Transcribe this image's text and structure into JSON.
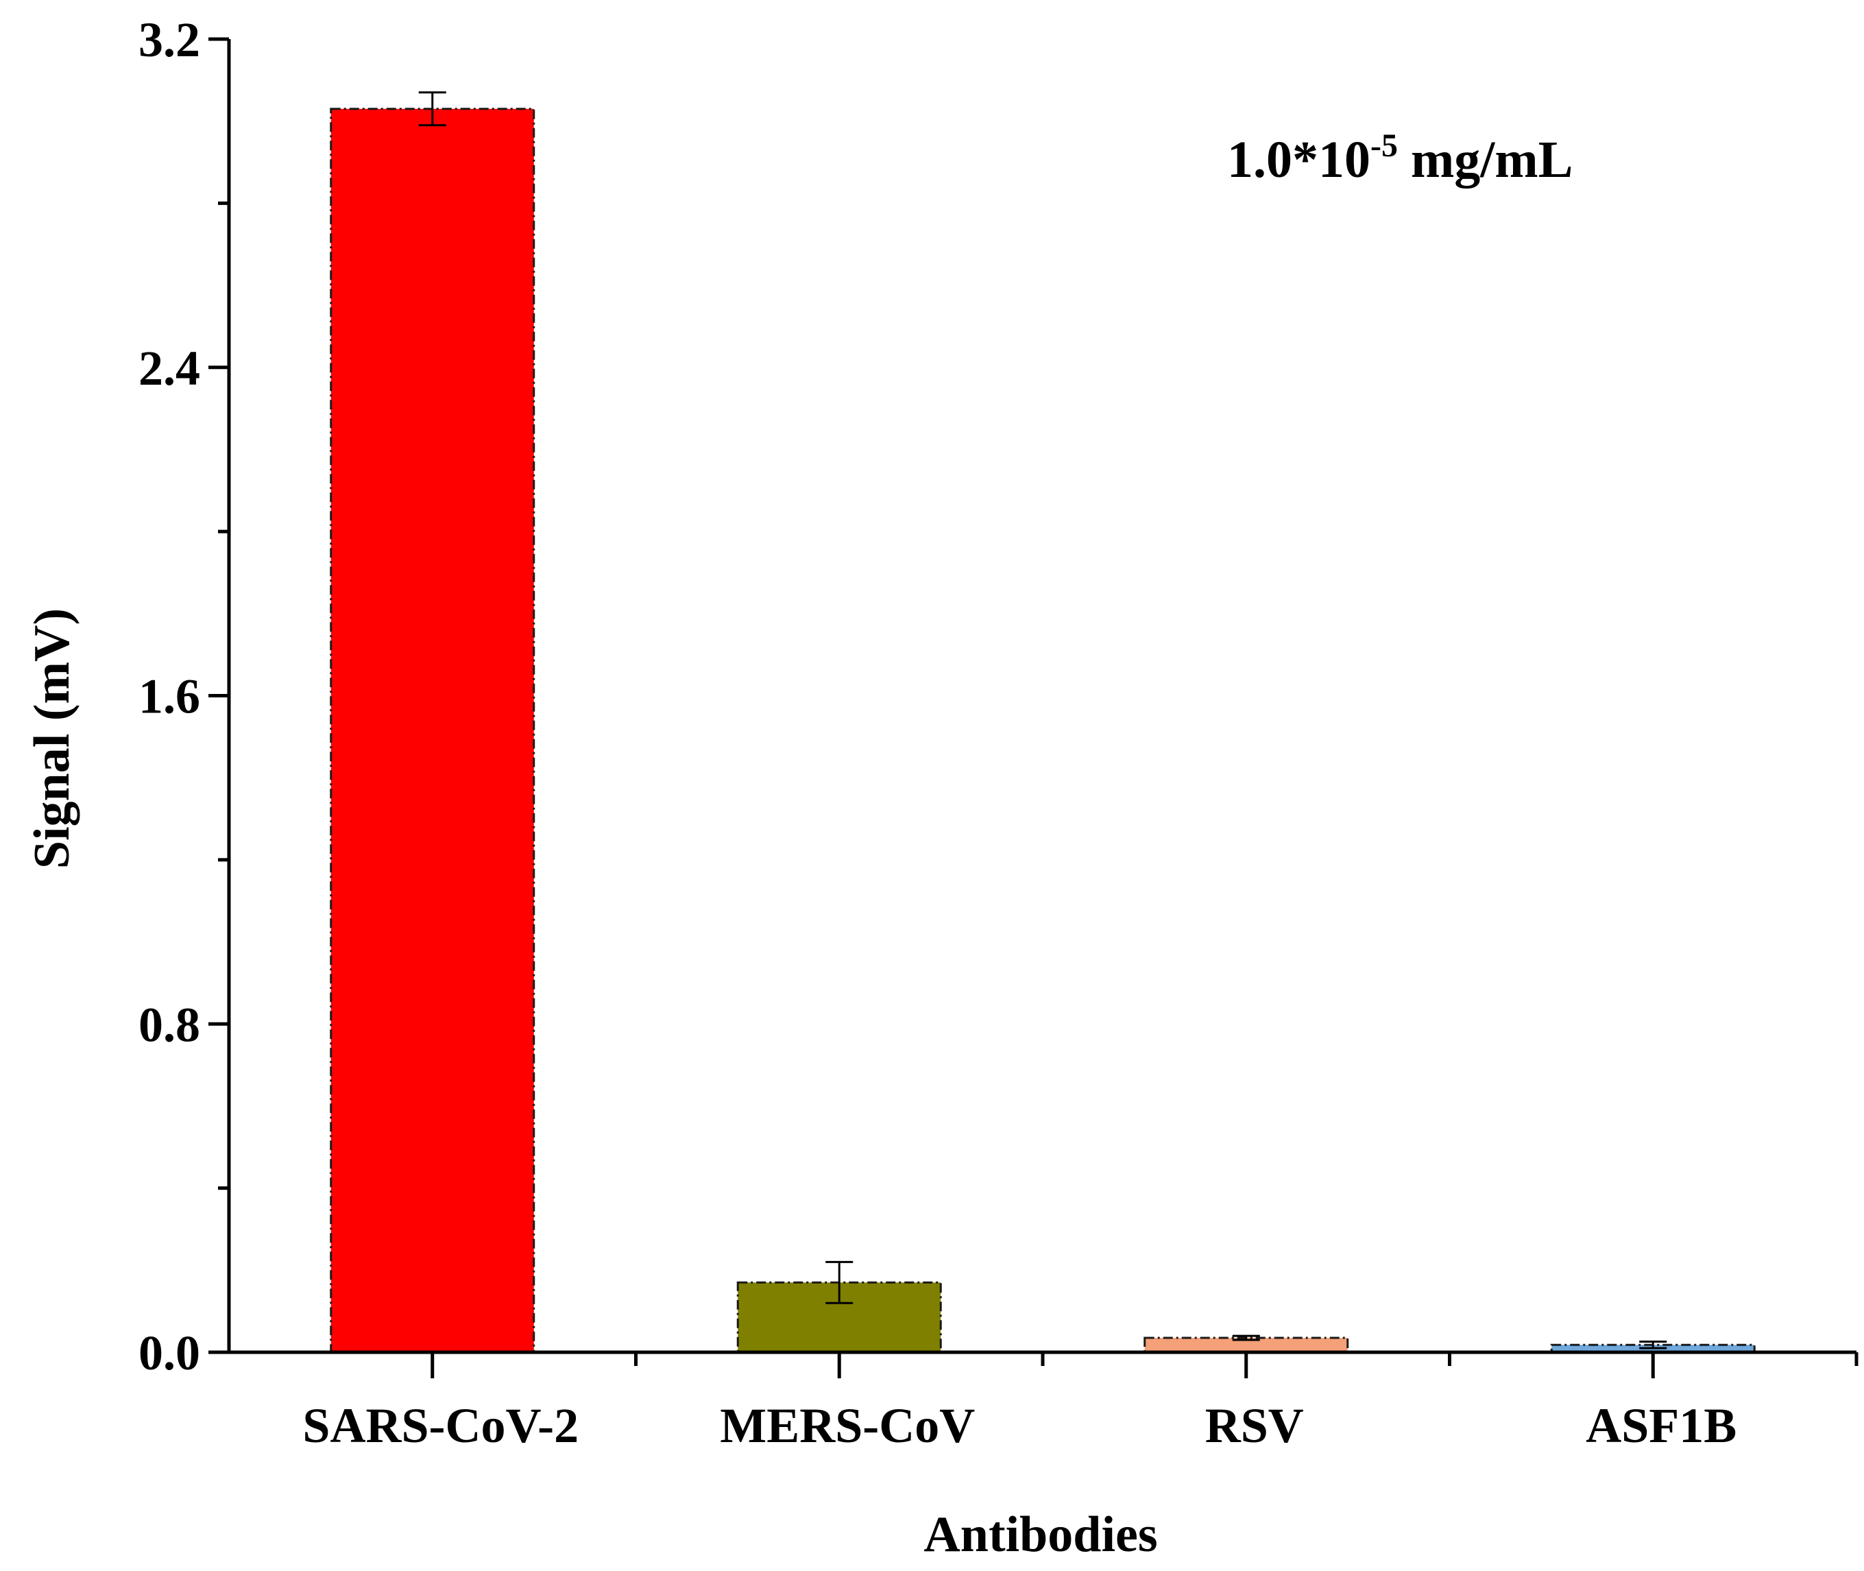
{
  "chart_data": {
    "type": "bar",
    "categories": [
      "SARS-CoV-2",
      "MERS-CoV",
      "RSV",
      "ASF1B"
    ],
    "values": [
      3.03,
      0.17,
      0.035,
      0.018
    ],
    "errors": [
      0.04,
      0.05,
      0.005,
      0.008
    ],
    "colors": [
      "#ff0000",
      "#808000",
      "#f4a078",
      "#6fa8dc"
    ],
    "xlabel": "Antibodies",
    "ylabel": "Signal (mV)",
    "ylim": [
      0,
      3.2
    ],
    "yticks": [
      0.0,
      0.8,
      1.6,
      2.4,
      3.2
    ],
    "ytick_labels": [
      "0.0",
      "0.8",
      "1.6",
      "2.4",
      "3.2"
    ],
    "annotation": {
      "prefix": "1.0*10",
      "exponent": "-5",
      "suffix": " mg/mL"
    },
    "grid": false
  }
}
